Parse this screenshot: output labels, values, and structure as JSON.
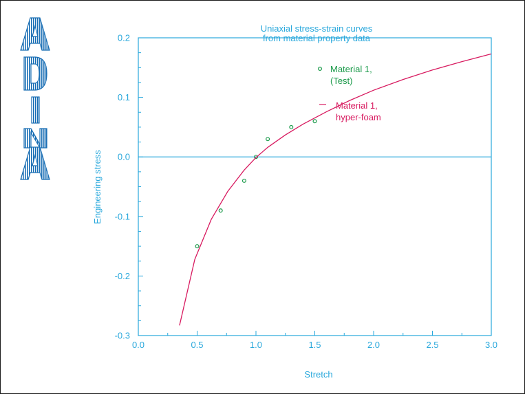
{
  "logo": {
    "text": "ADINA",
    "color": "#1a6fb5"
  },
  "chart_data": {
    "type": "line",
    "title": [
      "Uniaxial stress-strain curves",
      "from material property data"
    ],
    "xlabel": "Stretch",
    "ylabel": "Engineering stress",
    "xlim": [
      0.0,
      3.0
    ],
    "ylim": [
      -0.3,
      0.2
    ],
    "x_ticks": [
      0.0,
      0.5,
      1.0,
      1.5,
      2.0,
      2.5,
      3.0
    ],
    "x_tick_labels": [
      "0.0",
      "0.5",
      "1.0",
      "1.5",
      "2.0",
      "2.5",
      "3.0"
    ],
    "y_ticks": [
      -0.3,
      -0.2,
      -0.1,
      0.0,
      0.1,
      0.2
    ],
    "y_tick_labels": [
      "-0.3",
      "-0.2",
      "-0.1",
      "0.0",
      "0.1",
      "0.2"
    ],
    "zero_line": true,
    "axis_color": "#29a8dc",
    "series": [
      {
        "name": [
          "Material 1,",
          "(Test)"
        ],
        "kind": "scatter",
        "color": "#1b9a4a",
        "x": [
          0.5,
          0.7,
          0.9,
          1.0,
          1.1,
          1.3,
          1.5
        ],
        "y": [
          -0.15,
          -0.09,
          -0.04,
          0.0,
          0.03,
          0.05,
          0.06
        ]
      },
      {
        "name": [
          "Material 1,",
          "hyper-foam"
        ],
        "kind": "line",
        "color": "#d81b60",
        "x": [
          0.35,
          0.48,
          0.62,
          0.76,
          0.9,
          1.0,
          1.1,
          1.25,
          1.4,
          1.6,
          1.8,
          2.0,
          2.25,
          2.5,
          2.75,
          3.0
        ],
        "y": [
          -0.283,
          -0.172,
          -0.105,
          -0.058,
          -0.022,
          -0.001,
          0.016,
          0.037,
          0.055,
          0.076,
          0.095,
          0.112,
          0.13,
          0.146,
          0.16,
          0.173
        ]
      }
    ]
  }
}
